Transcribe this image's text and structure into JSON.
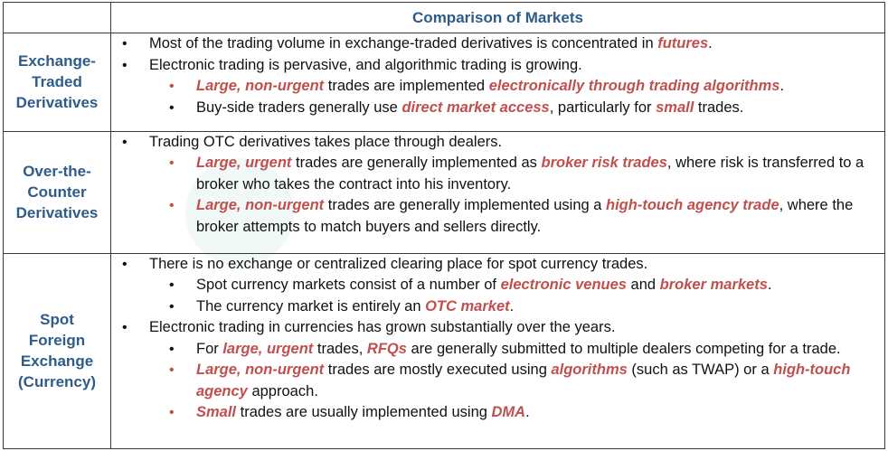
{
  "title": "Comparison of Markets",
  "rows": {
    "exchange": {
      "label": [
        "Exchange-",
        "Traded",
        "Derivatives"
      ],
      "b1": {
        "t1": "Most of the trading volume in exchange-traded derivatives is concentrated in ",
        "e1": "futures",
        "t2": "."
      },
      "b2": {
        "t1": "Electronic trading is pervasive, and algorithmic trading is growing."
      },
      "b2a": {
        "e1": "Large, non-urgent",
        "t1": " trades are implemented ",
        "e2": "electronically through trading algorithms",
        "t2": "."
      },
      "b2b": {
        "t1": "Buy-side traders generally use ",
        "e1": "direct market access",
        "t2": ", particularly for ",
        "e2": "small",
        "t3": " trades."
      }
    },
    "otc": {
      "label": [
        "Over-the-",
        "Counter",
        "Derivatives"
      ],
      "b1": {
        "t1": "Trading OTC derivatives takes place through dealers."
      },
      "b1a": {
        "e1": "Large, urgent",
        "t1": " trades are generally implemented as ",
        "e2": "broker risk trades",
        "t2": ", where risk is transferred to a broker who takes the contract into his inventory."
      },
      "b1b": {
        "e1": "Large, non-urgent",
        "t1": " trades are generally implemented using a ",
        "e2": "high-touch agency trade",
        "t2": ", where the broker attempts to match buyers and sellers directly."
      }
    },
    "spot": {
      "label": [
        "Spot",
        "Foreign",
        "Exchange",
        "(Currency)"
      ],
      "b1": {
        "t1": "There is no exchange or centralized clearing place for spot currency trades."
      },
      "b1a": {
        "t1": "Spot currency markets consist of a number of ",
        "e1": "electronic venues",
        "t2": " and ",
        "e2": "broker markets",
        "t3": "."
      },
      "b1b": {
        "t1": "The currency market is entirely an ",
        "e1": "OTC market",
        "t2": "."
      },
      "b2": {
        "t1": "Electronic trading in currencies has grown substantially over the years."
      },
      "b2a": {
        "t1": "For ",
        "e1": "large, urgent",
        "t2": " trades, ",
        "e2": "RFQs",
        "t3": " are generally submitted to multiple dealers competing for a trade."
      },
      "b2b": {
        "e1": "Large, non-urgent",
        "t1": " trades are mostly executed using ",
        "e2": "algorithms",
        "t2": " (such as TWAP) or a ",
        "e3": "high-touch agency",
        "t3": " approach."
      },
      "b2c": {
        "e1": "Small",
        "t1": " trades are usually implemented using ",
        "e2": "DMA",
        "t2": "."
      }
    }
  }
}
